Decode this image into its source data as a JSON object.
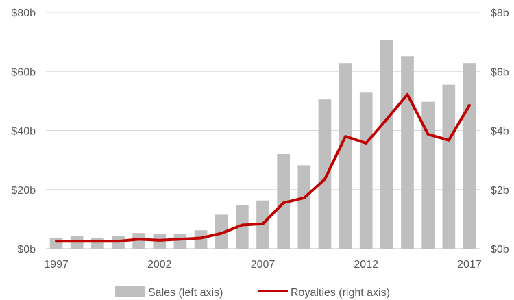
{
  "chart_data": {
    "type": "bar",
    "categories": [
      "1997",
      "1998",
      "1999",
      "2000",
      "2001",
      "2002",
      "2003",
      "2004",
      "2005",
      "2006",
      "2007",
      "2008",
      "2009",
      "2010",
      "2011",
      "2012",
      "2013",
      "2014",
      "2015",
      "2016",
      "2017"
    ],
    "series": [
      {
        "name": "Sales (left axis)",
        "type": "bar",
        "axis": "left",
        "unit": "$b",
        "color": "#bfbfbf",
        "values": [
          3.5,
          4.2,
          3.5,
          4.2,
          5.3,
          5.0,
          5.0,
          6.2,
          11.5,
          14.8,
          16.3,
          32.0,
          28.2,
          50.5,
          62.8,
          52.8,
          70.7,
          65.1,
          49.7,
          55.5,
          62.8
        ]
      },
      {
        "name": "Royalties (right axis)",
        "type": "line",
        "axis": "right",
        "unit": "$b",
        "color": "#c00000",
        "values": [
          0.25,
          0.25,
          0.25,
          0.25,
          0.32,
          0.28,
          0.32,
          0.36,
          0.52,
          0.8,
          0.84,
          1.55,
          1.72,
          2.35,
          3.8,
          3.57,
          4.38,
          5.22,
          3.87,
          3.67,
          4.85
        ]
      }
    ],
    "y_left": {
      "ylim": [
        0,
        80
      ],
      "ticks": [
        "$0b",
        "$20b",
        "$40b",
        "$60b",
        "$80b"
      ],
      "tick_values": [
        0,
        20,
        40,
        60,
        80
      ]
    },
    "y_right": {
      "ylim": [
        0,
        8
      ],
      "ticks": [
        "$0b",
        "$2b",
        "$4b",
        "$6b",
        "$8b"
      ],
      "tick_values": [
        0,
        2,
        4,
        6,
        8
      ]
    },
    "x_ticks": [
      "1997",
      "2002",
      "2007",
      "2012",
      "2017"
    ],
    "grid": true,
    "legend_position": "bottom-center",
    "xlabel": "",
    "ylabel": ""
  }
}
